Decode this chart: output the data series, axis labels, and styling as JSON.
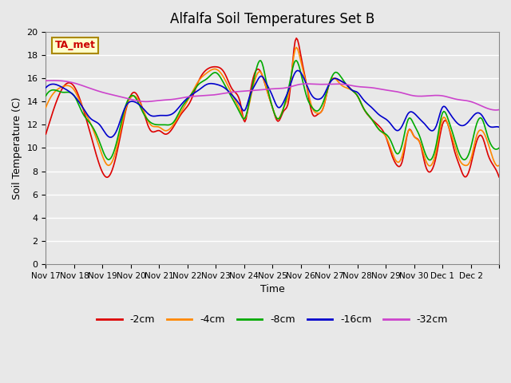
{
  "title": "Alfalfa Soil Temperatures Set B",
  "xlabel": "Time",
  "ylabel": "Soil Temperature (C)",
  "ylim": [
    0,
    20
  ],
  "yticks": [
    0,
    2,
    4,
    6,
    8,
    10,
    12,
    14,
    16,
    18,
    20
  ],
  "annotation_text": "TA_met",
  "annotation_color": "#cc0000",
  "annotation_bg": "#ffffcc",
  "line_colors": {
    "-2cm": "#dd0000",
    "-4cm": "#ff8800",
    "-8cm": "#00aa00",
    "-16cm": "#0000cc",
    "-32cm": "#cc44cc"
  },
  "bg_color": "#e8e8e8",
  "plot_bg_color": "#e8e8e8",
  "grid_color": "#ffffff",
  "x_tick_positions": [
    0,
    1,
    2,
    3,
    4,
    5,
    6,
    7,
    8,
    9,
    10,
    11,
    12,
    13,
    14,
    15,
    16
  ],
  "x_tick_labels": [
    "Nov 17",
    "Nov 18",
    "Nov 19",
    "Nov 20",
    "Nov 21",
    "Nov 22",
    "Nov 23",
    "Nov 24",
    "Nov 25",
    "Nov 26",
    "Nov 27",
    "Nov 28",
    "Nov 29",
    "Nov 30",
    "Dec 1",
    "Dec 2",
    ""
  ],
  "num_points": 370
}
